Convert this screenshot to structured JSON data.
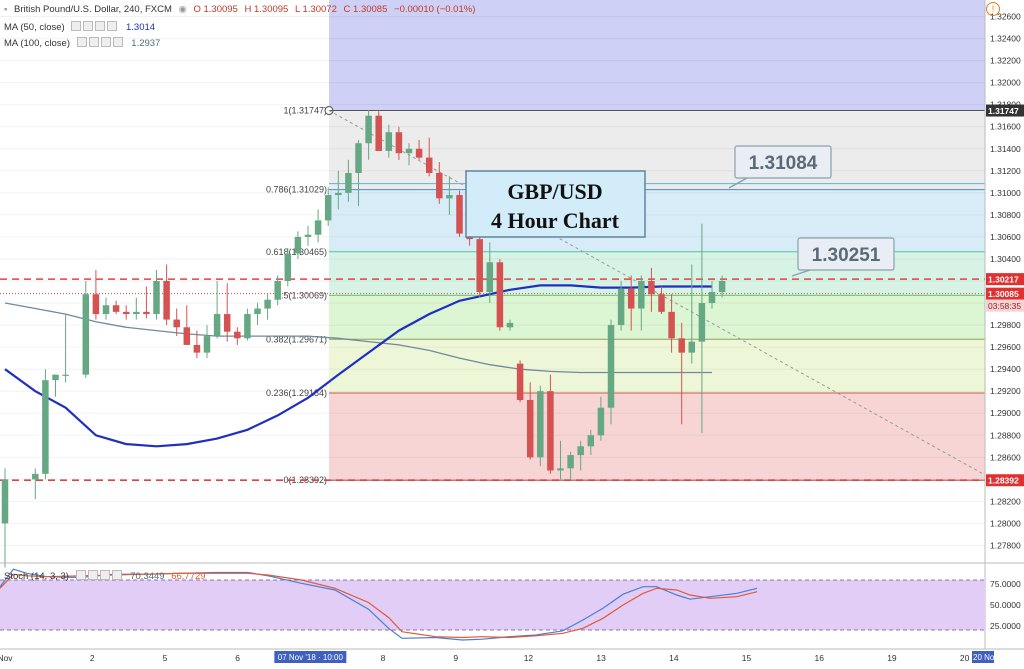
{
  "header": {
    "symbol": "British Pound/U.S. Dollar, 240, FXCM",
    "open": "O 1.30095",
    "high": "H 1.30095",
    "low": "L 1.30072",
    "close": "C 1.30085",
    "change": "−0.00010 (−0.01%)",
    "ma50_label": "MA (50, close)",
    "ma50_value": "1.3014",
    "ma100_label": "MA (100, close)",
    "ma100_value": "1.2937",
    "stoch_label": "Stoch (14, 3, 3)",
    "stoch_k": "70.3449",
    "stoch_d": "66.7729"
  },
  "annotations": {
    "title_line1": "GBP/USD",
    "title_line2": "4 Hour Chart",
    "callout_1": "1.31084",
    "callout_2": "1.30251",
    "countdown": "03:58:35"
  },
  "colors": {
    "up": "#66a884",
    "down": "#d55252",
    "ma50": "#1f2fbf",
    "ma100": "#6f8a9a",
    "stoch_k": "#4a7fd0",
    "stoch_d": "#e05a3a",
    "price_tag": "#c0392b",
    "high_tag": "#333333"
  },
  "chart_data": {
    "type": "candlestick",
    "instrument": "British Pound/U.S. Dollar",
    "timeframe": "240",
    "y_axis": {
      "min": 1.2765,
      "max": 1.3275,
      "ticks": [
        "1.32600",
        "1.32400",
        "1.32200",
        "1.32000",
        "1.31800",
        "1.31600",
        "1.31400",
        "1.31200",
        "1.31000",
        "1.30800",
        "1.30600",
        "1.30400",
        "1.30200",
        "1.30000",
        "1.29800",
        "1.29600",
        "1.29400",
        "1.29200",
        "1.29000",
        "1.28800",
        "1.28600",
        "1.28400",
        "1.28200",
        "1.28000",
        "1.27800"
      ]
    },
    "x_axis": {
      "ticks": [
        {
          "label": "Nov",
          "i": 0
        },
        {
          "label": "2",
          "i": 12
        },
        {
          "label": "5",
          "i": 22
        },
        {
          "label": "6",
          "i": 32
        },
        {
          "label": "07 Nov '18 · 10:00",
          "i": 42
        },
        {
          "label": "8",
          "i": 52
        },
        {
          "label": "9",
          "i": 62
        },
        {
          "label": "12",
          "i": 72
        },
        {
          "label": "13",
          "i": 82
        },
        {
          "label": "14",
          "i": 92
        },
        {
          "label": "15",
          "i": 102
        },
        {
          "label": "16",
          "i": 112
        },
        {
          "label": "19",
          "i": 122
        },
        {
          "label": "20",
          "i": 132
        },
        {
          "label": "20 No",
          "i": 135
        }
      ]
    },
    "candles": [
      [
        1.28,
        1.285,
        1.276,
        1.284
      ],
      [
        1.284,
        1.285,
        1.2822,
        1.2845
      ],
      [
        1.2845,
        1.294,
        1.284,
        1.293
      ],
      [
        1.293,
        1.2935,
        1.2915,
        1.2935
      ],
      [
        1.2935,
        1.299,
        1.2928,
        1.2935
      ],
      [
        1.2935,
        1.302,
        1.2932,
        1.3008
      ],
      [
        1.3008,
        1.303,
        1.2985,
        1.299
      ],
      [
        1.299,
        1.3005,
        1.2985,
        1.2998
      ],
      [
        1.2998,
        1.3002,
        1.299,
        1.2992
      ],
      [
        1.2992,
        1.2998,
        1.2985,
        1.299
      ],
      [
        1.299,
        1.3005,
        1.2985,
        1.2992
      ],
      [
        1.2992,
        1.3015,
        1.2986,
        1.299
      ],
      [
        1.299,
        1.303,
        1.2985,
        1.302
      ],
      [
        1.302,
        1.3035,
        1.298,
        1.2985
      ],
      [
        1.2985,
        1.2995,
        1.297,
        1.2978
      ],
      [
        1.2978,
        1.2998,
        1.2962,
        1.2962
      ],
      [
        1.2962,
        1.2975,
        1.295,
        1.2955
      ],
      [
        1.2955,
        1.298,
        1.295,
        1.297
      ],
      [
        1.297,
        1.302,
        1.2968,
        1.299
      ],
      [
        1.299,
        1.3018,
        1.2965,
        1.2974
      ],
      [
        1.2974,
        1.2978,
        1.2962,
        1.2968
      ],
      [
        1.2968,
        1.2995,
        1.2966,
        1.299
      ],
      [
        1.299,
        1.3,
        1.298,
        1.2995
      ],
      [
        1.2995,
        1.3008,
        1.2985,
        1.3003
      ],
      [
        1.3003,
        1.3025,
        1.2998,
        1.302
      ],
      [
        1.302,
        1.305,
        1.3015,
        1.3045
      ],
      [
        1.3045,
        1.3065,
        1.304,
        1.306
      ],
      [
        1.306,
        1.307,
        1.3052,
        1.3062
      ],
      [
        1.3062,
        1.3085,
        1.3055,
        1.3075
      ],
      [
        1.3075,
        1.3105,
        1.307,
        1.3098
      ],
      [
        1.3098,
        1.312,
        1.3085,
        1.31
      ],
      [
        1.31,
        1.313,
        1.3092,
        1.3118
      ],
      [
        1.3118,
        1.3148,
        1.3088,
        1.3145
      ],
      [
        1.3145,
        1.3175,
        1.313,
        1.317
      ],
      [
        1.317,
        1.3174,
        1.314,
        1.3138
      ],
      [
        1.3138,
        1.3162,
        1.3132,
        1.3155
      ],
      [
        1.3155,
        1.316,
        1.313,
        1.3136
      ],
      [
        1.3136,
        1.3145,
        1.3125,
        1.314
      ],
      [
        1.314,
        1.3148,
        1.313,
        1.3132
      ],
      [
        1.3132,
        1.315,
        1.3115,
        1.3118
      ],
      [
        1.3118,
        1.3128,
        1.309,
        1.3095
      ],
      [
        1.3095,
        1.3115,
        1.308,
        1.3098
      ],
      [
        1.3098,
        1.3102,
        1.306,
        1.3063
      ],
      [
        1.3063,
        1.3078,
        1.3052,
        1.3058
      ],
      [
        1.3058,
        1.3062,
        1.3005,
        1.301
      ],
      [
        1.301,
        1.3055,
        1.3,
        1.3037
      ],
      [
        1.3037,
        1.304,
        1.2975,
        1.2978
      ],
      [
        1.2978,
        1.2985,
        1.2975,
        1.2982
      ],
      [
        1.2945,
        1.2948,
        1.291,
        1.2912
      ],
      [
        1.2912,
        1.2928,
        1.2858,
        1.286
      ],
      [
        1.286,
        1.2925,
        1.2852,
        1.292
      ],
      [
        1.292,
        1.2935,
        1.2845,
        1.2848
      ],
      [
        1.2848,
        1.2875,
        1.284,
        1.285
      ],
      [
        1.285,
        1.2865,
        1.284,
        1.2862
      ],
      [
        1.2862,
        1.2875,
        1.2848,
        1.287
      ],
      [
        1.287,
        1.2885,
        1.2862,
        1.288
      ],
      [
        1.288,
        1.2915,
        1.2875,
        1.2905
      ],
      [
        1.2905,
        1.2985,
        1.289,
        1.298
      ],
      [
        1.298,
        1.302,
        1.2975,
        1.3013
      ],
      [
        1.3013,
        1.3025,
        1.2975,
        1.2995
      ],
      [
        1.2995,
        1.3025,
        1.2975,
        1.302
      ],
      [
        1.302,
        1.3032,
        1.2992,
        1.3008
      ],
      [
        1.3008,
        1.3015,
        1.299,
        1.2992
      ],
      [
        1.2992,
        1.3008,
        1.2955,
        1.2968
      ],
      [
        1.2968,
        1.2982,
        1.289,
        1.2955
      ],
      [
        1.2955,
        1.3035,
        1.2945,
        1.2965
      ],
      [
        1.2965,
        1.3072,
        1.2882,
        1.3
      ],
      [
        1.3,
        1.302,
        1.2995,
        1.301
      ],
      [
        1.301,
        1.3025,
        1.3005,
        1.302
      ]
    ],
    "candle_positions": [
      0,
      3,
      4,
      5,
      6,
      8,
      9,
      10,
      11,
      12,
      13,
      14,
      15,
      16,
      17,
      18,
      19,
      20,
      21,
      22,
      23,
      24,
      25,
      26,
      27,
      28,
      29,
      30,
      31,
      32,
      33,
      34,
      35,
      36,
      37,
      38,
      39,
      40,
      41,
      42,
      43,
      44,
      45,
      46,
      47,
      48,
      49,
      50,
      51,
      52,
      53,
      54,
      55,
      56,
      57,
      58,
      59,
      60,
      61,
      62,
      63,
      64,
      65,
      66,
      67,
      68,
      69,
      70,
      71
    ],
    "ma50": [
      [
        0,
        1.294
      ],
      [
        3,
        1.292
      ],
      [
        6,
        1.2905
      ],
      [
        9,
        1.288
      ],
      [
        12,
        1.2872
      ],
      [
        15,
        1.287
      ],
      [
        18,
        1.2872
      ],
      [
        21,
        1.2877
      ],
      [
        24,
        1.2885
      ],
      [
        27,
        1.2898
      ],
      [
        30,
        1.2914
      ],
      [
        33,
        1.2935
      ],
      [
        36,
        1.2955
      ],
      [
        39,
        1.2975
      ],
      [
        42,
        1.299
      ],
      [
        45,
        1.3002
      ],
      [
        48,
        1.3008
      ],
      [
        50,
        1.3012
      ],
      [
        53,
        1.3016
      ],
      [
        56,
        1.3016
      ],
      [
        59,
        1.3014
      ],
      [
        62,
        1.3014
      ],
      [
        65,
        1.3015
      ],
      [
        68,
        1.3015
      ],
      [
        70,
        1.3015
      ]
    ],
    "ma100": [
      [
        0,
        1.3
      ],
      [
        3,
        1.2995
      ],
      [
        6,
        1.299
      ],
      [
        9,
        1.2983
      ],
      [
        12,
        1.2978
      ],
      [
        15,
        1.2975
      ],
      [
        18,
        1.2972
      ],
      [
        21,
        1.297
      ],
      [
        24,
        1.297
      ],
      [
        27,
        1.297
      ],
      [
        30,
        1.297
      ],
      [
        33,
        1.2968
      ],
      [
        36,
        1.2965
      ],
      [
        39,
        1.2962
      ],
      [
        42,
        1.2957
      ],
      [
        45,
        1.295
      ],
      [
        48,
        1.2944
      ],
      [
        51,
        1.294
      ],
      [
        54,
        1.2938
      ],
      [
        57,
        1.2937
      ],
      [
        60,
        1.2937
      ],
      [
        63,
        1.2937
      ],
      [
        66,
        1.2937
      ],
      [
        70,
        1.2937
      ]
    ],
    "fibonacci": [
      {
        "ratio": "1",
        "label": "1(1.31747)",
        "price": 1.31747,
        "fill": "#ececec",
        "line": "#999999"
      },
      {
        "ratio": "0.786",
        "label": "0.786(1.31029)",
        "price": 1.31029,
        "fill": "#d8ecf8",
        "line": "#4a8ec4"
      },
      {
        "ratio": "0.618",
        "label": "0.618(1.30465)",
        "price": 1.30465,
        "fill": "#d7f3e6",
        "line": "#55c49a"
      },
      {
        "ratio": "0.5",
        "label": "0.5(1.30069)",
        "price": 1.30069,
        "fill": "#dcf5d2",
        "line": "#6cc36c"
      },
      {
        "ratio": "0.382",
        "label": "0.382(1.29671)",
        "price": 1.29671,
        "fill": "#eef6d8",
        "line": "#90a060"
      },
      {
        "ratio": "0.236",
        "label": "0.236(1.29184)",
        "price": 1.29184,
        "fill": "#f7d5d5",
        "line": "#d55252"
      },
      {
        "ratio": "0",
        "label": "0(1.28392)",
        "price": 1.28392,
        "fill": "none",
        "line": "#b05050"
      }
    ],
    "horizontal_lines": [
      {
        "price": 1.30217,
        "style": "dashed",
        "color": "#d44"
      },
      {
        "price": 1.28392,
        "style": "dashed",
        "color": "#d44"
      },
      {
        "price": 1.31747,
        "style": "solid",
        "color": "#555"
      },
      {
        "price": 1.31084,
        "style": "solid",
        "color": "#5ab4e0"
      },
      {
        "price": 1.30085,
        "style": "dotted",
        "color": "#d44"
      }
    ],
    "price_labels": [
      {
        "text": "1.31747",
        "price": 1.31747,
        "bg": "#333333"
      },
      {
        "text": "1.30217",
        "price": 1.30217,
        "bg": "#e03030"
      },
      {
        "text": "1.30085",
        "price": 1.30085,
        "bg": "#e03030"
      },
      {
        "text": "1.28392",
        "price": 1.28392,
        "bg": "#e03030"
      }
    ],
    "stochastic": {
      "upper": 80,
      "lower": 20,
      "ticks": [
        "75.0000",
        "50.0000",
        "25.0000"
      ],
      "k": [
        [
          0,
          72
        ],
        [
          2,
          93
        ],
        [
          4,
          88
        ],
        [
          7,
          84
        ],
        [
          12,
          83
        ],
        [
          17,
          87
        ],
        [
          22,
          87
        ],
        [
          27,
          88
        ],
        [
          32,
          89
        ],
        [
          37,
          89
        ],
        [
          40,
          85
        ],
        [
          45,
          76
        ],
        [
          50,
          68
        ],
        [
          55,
          45
        ],
        [
          58,
          22
        ],
        [
          60,
          10
        ],
        [
          65,
          11
        ],
        [
          69,
          8
        ],
        [
          72,
          9
        ],
        [
          76,
          12
        ],
        [
          80,
          14
        ],
        [
          84,
          19
        ],
        [
          87,
          32
        ],
        [
          90,
          46
        ],
        [
          93,
          63
        ],
        [
          96,
          72
        ],
        [
          98,
          72
        ],
        [
          101,
          62
        ],
        [
          103,
          57
        ],
        [
          106,
          60
        ],
        [
          110,
          64
        ],
        [
          113,
          70
        ]
      ],
      "d": [
        [
          0,
          70
        ],
        [
          2,
          87
        ],
        [
          4,
          85
        ],
        [
          7,
          84
        ],
        [
          12,
          85
        ],
        [
          17,
          86
        ],
        [
          22,
          87
        ],
        [
          27,
          88
        ],
        [
          32,
          88
        ],
        [
          37,
          88
        ],
        [
          40,
          86
        ],
        [
          45,
          80
        ],
        [
          50,
          70
        ],
        [
          55,
          53
        ],
        [
          58,
          35
        ],
        [
          60,
          18
        ],
        [
          65,
          12
        ],
        [
          69,
          11
        ],
        [
          72,
          12
        ],
        [
          76,
          11
        ],
        [
          80,
          13
        ],
        [
          84,
          16
        ],
        [
          87,
          22
        ],
        [
          90,
          34
        ],
        [
          93,
          50
        ],
        [
          96,
          64
        ],
        [
          98,
          70
        ],
        [
          101,
          68
        ],
        [
          103,
          62
        ],
        [
          106,
          58
        ],
        [
          110,
          60
        ],
        [
          113,
          66
        ]
      ]
    }
  }
}
